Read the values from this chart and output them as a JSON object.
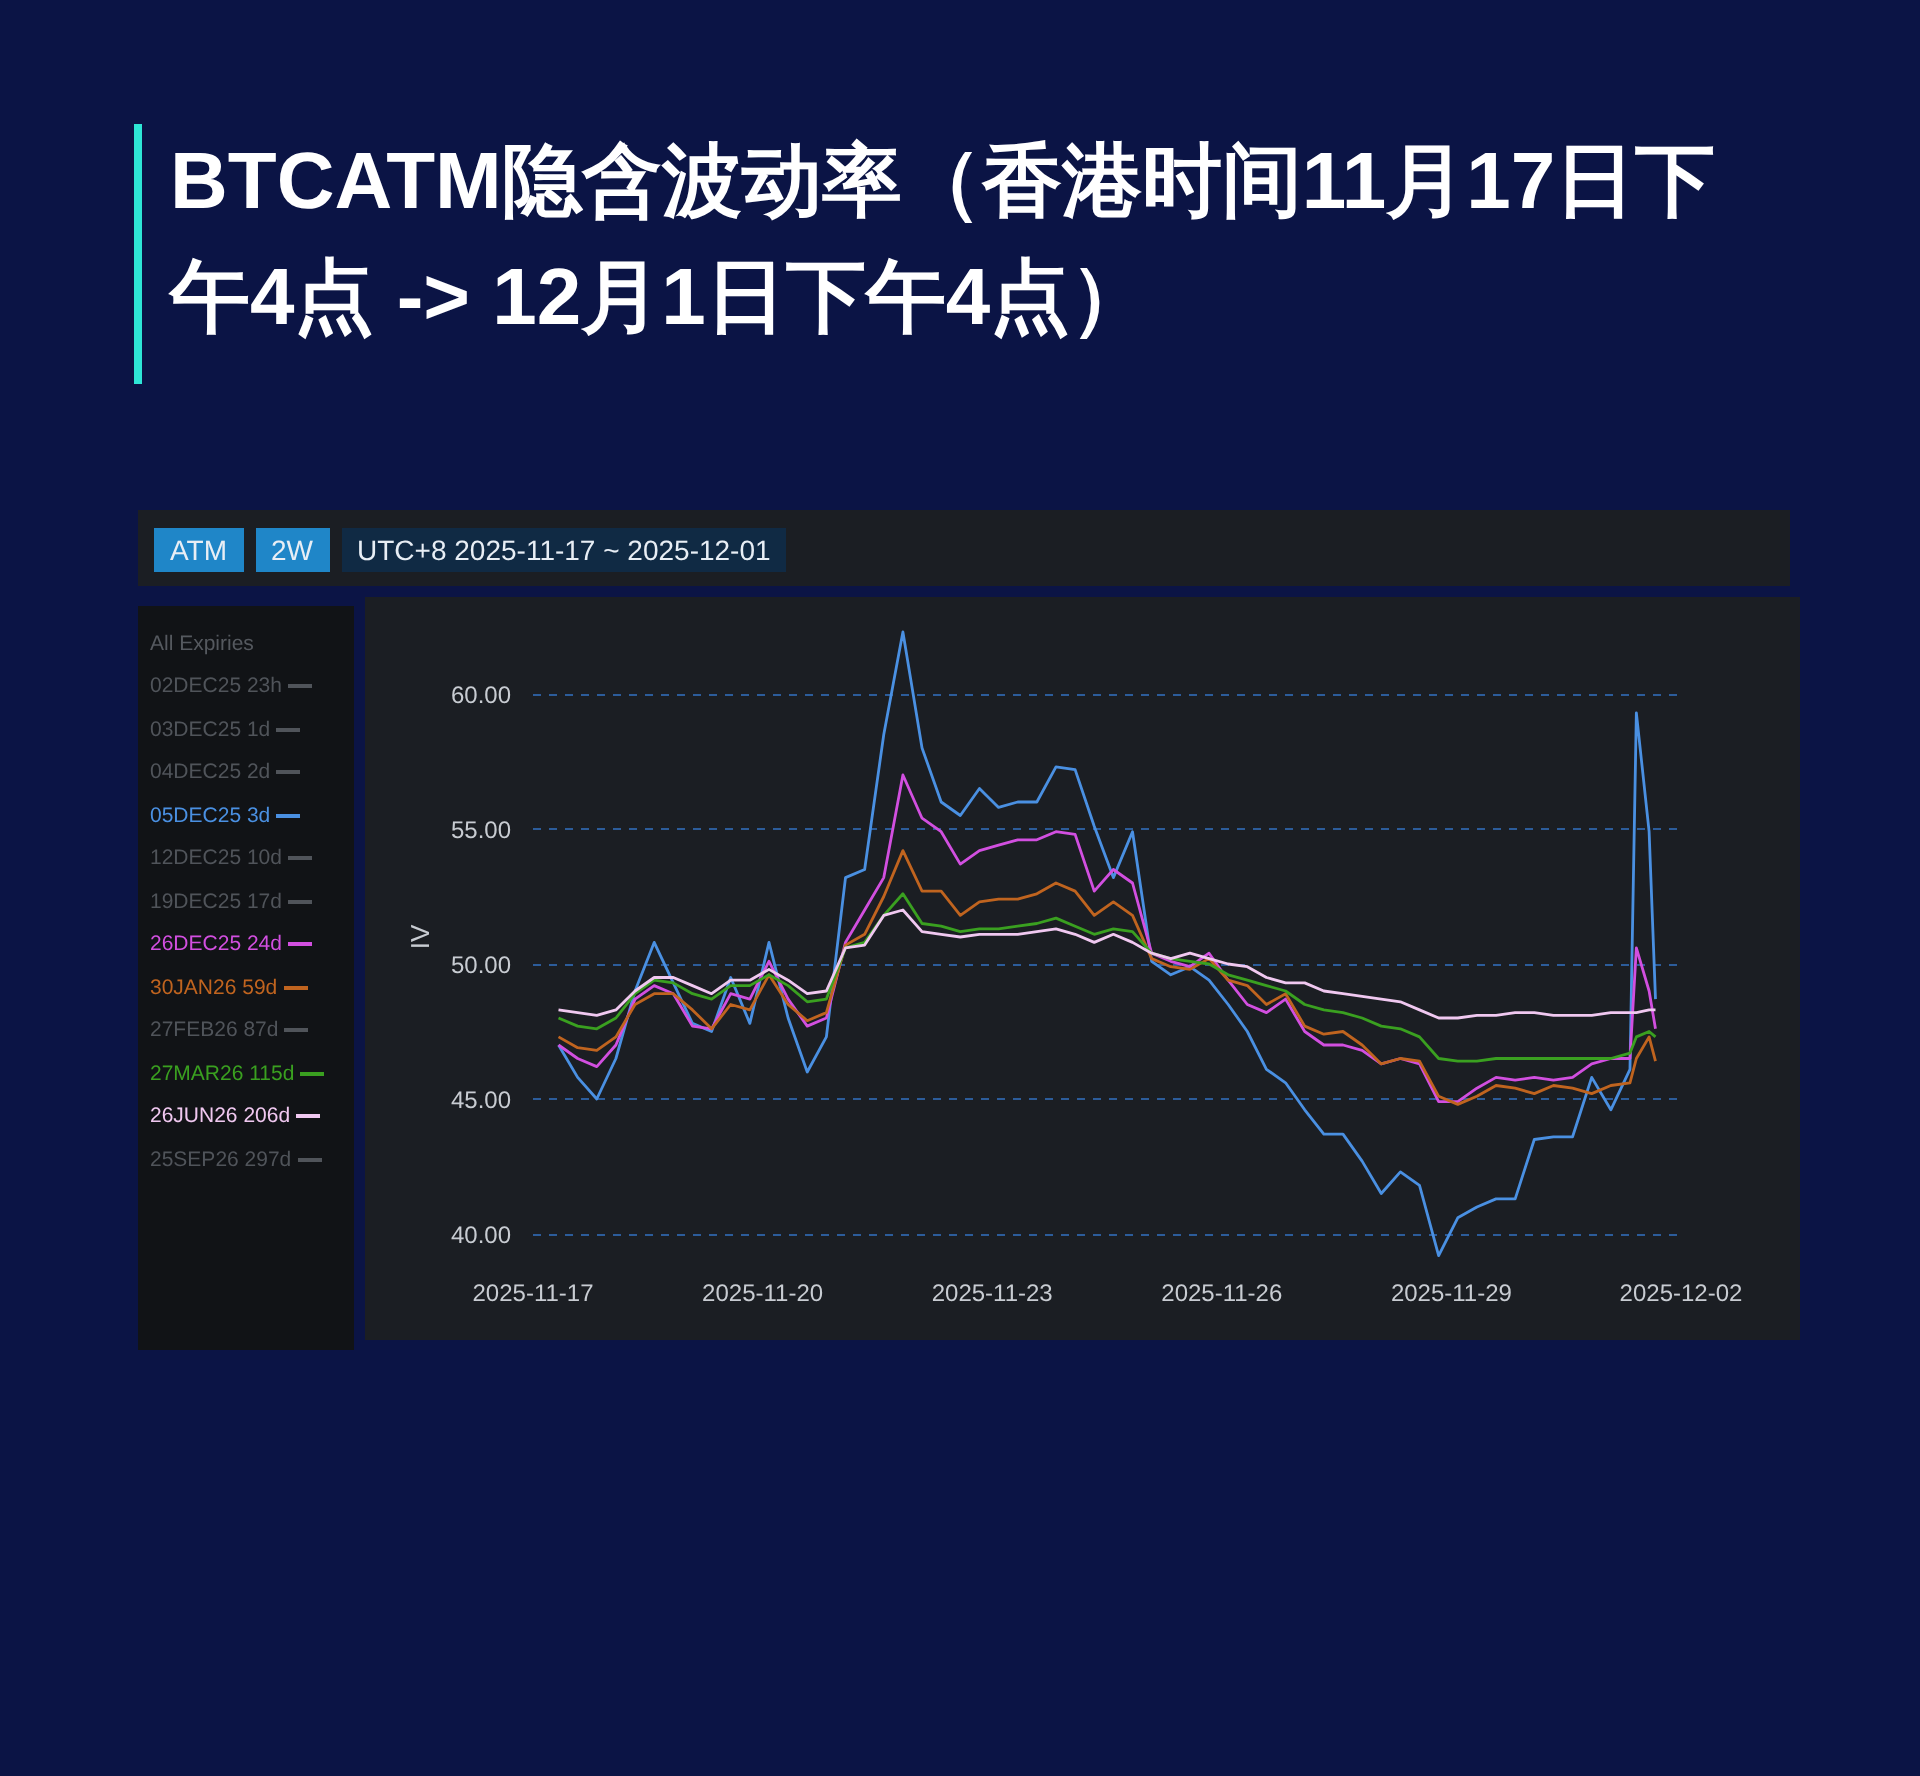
{
  "chart_data": {
    "type": "line",
    "title": "BTCATM隐含波动率（香港时间11月17日下午4点 -> 12月1日下午4点）",
    "ylabel": "IV",
    "annotations": [
      "ATM",
      "2W",
      "UTC+8 2025-11-17 ~ 2025-12-01",
      "All Expiries"
    ],
    "x": [
      "2025-11-17T08:00",
      "2025-11-17T14:00",
      "2025-11-17T20:00",
      "2025-11-18T02:00",
      "2025-11-18T08:00",
      "2025-11-18T14:00",
      "2025-11-18T20:00",
      "2025-11-19T02:00",
      "2025-11-19T08:00",
      "2025-11-19T14:00",
      "2025-11-19T20:00",
      "2025-11-20T02:00",
      "2025-11-20T08:00",
      "2025-11-20T14:00",
      "2025-11-20T20:00",
      "2025-11-21T02:00",
      "2025-11-21T08:00",
      "2025-11-21T14:00",
      "2025-11-21T20:00",
      "2025-11-22T02:00",
      "2025-11-22T08:00",
      "2025-11-22T14:00",
      "2025-11-22T20:00",
      "2025-11-23T02:00",
      "2025-11-23T08:00",
      "2025-11-23T14:00",
      "2025-11-23T20:00",
      "2025-11-24T02:00",
      "2025-11-24T08:00",
      "2025-11-24T14:00",
      "2025-11-24T20:00",
      "2025-11-25T02:00",
      "2025-11-25T08:00",
      "2025-11-25T14:00",
      "2025-11-25T20:00",
      "2025-11-26T02:00",
      "2025-11-26T08:00",
      "2025-11-26T14:00",
      "2025-11-26T20:00",
      "2025-11-27T02:00",
      "2025-11-27T08:00",
      "2025-11-27T14:00",
      "2025-11-27T20:00",
      "2025-11-28T02:00",
      "2025-11-28T08:00",
      "2025-11-28T14:00",
      "2025-11-28T20:00",
      "2025-11-29T02:00",
      "2025-11-29T08:00",
      "2025-11-29T14:00",
      "2025-11-29T20:00",
      "2025-11-30T02:00",
      "2025-11-30T08:00",
      "2025-11-30T14:00",
      "2025-11-30T20:00",
      "2025-12-01T02:00",
      "2025-12-01T08:00",
      "2025-12-01T10:00",
      "2025-12-01T14:00",
      "2025-12-01T16:00"
    ],
    "series": [
      {
        "name": "02DEC25 23h",
        "color": "#50545a",
        "values": [
          null,
          null,
          null,
          null,
          null,
          null,
          null,
          null,
          null,
          null,
          null,
          null,
          null,
          null,
          null,
          null,
          null,
          null,
          null,
          null,
          null,
          null,
          null,
          null,
          null,
          null,
          null,
          null,
          null,
          null,
          null,
          null,
          null,
          null,
          null,
          null,
          null,
          null,
          null,
          null,
          null,
          null,
          null,
          null,
          null,
          null,
          null,
          null,
          null,
          null,
          null,
          null,
          null,
          null,
          null,
          null,
          null,
          null,
          null,
          null
        ]
      },
      {
        "name": "03DEC25 1d",
        "color": "#50545a",
        "values": [
          null,
          null,
          null,
          null,
          null,
          null,
          null,
          null,
          null,
          null,
          null,
          null,
          null,
          null,
          null,
          null,
          null,
          null,
          null,
          null,
          null,
          null,
          null,
          null,
          null,
          null,
          null,
          null,
          null,
          null,
          null,
          null,
          null,
          null,
          null,
          null,
          null,
          null,
          null,
          null,
          null,
          null,
          null,
          null,
          null,
          null,
          null,
          null,
          null,
          null,
          null,
          null,
          null,
          null,
          null,
          null,
          null,
          null,
          null,
          null
        ]
      },
      {
        "name": "04DEC25 2d",
        "color": "#50545a",
        "values": [
          null,
          null,
          null,
          null,
          null,
          null,
          null,
          null,
          null,
          null,
          null,
          null,
          null,
          null,
          null,
          null,
          null,
          null,
          null,
          null,
          null,
          null,
          null,
          null,
          null,
          null,
          null,
          null,
          null,
          null,
          null,
          null,
          null,
          null,
          null,
          null,
          null,
          null,
          null,
          null,
          null,
          null,
          null,
          null,
          null,
          null,
          null,
          null,
          null,
          null,
          null,
          null,
          null,
          null,
          null,
          null,
          null,
          null,
          null,
          null
        ]
      },
      {
        "name": "05DEC25 3d",
        "color": "#4a90e2",
        "values": [
          47.0,
          45.8,
          45.0,
          46.5,
          49.0,
          50.8,
          49.3,
          47.8,
          47.5,
          49.5,
          47.8,
          50.8,
          48.0,
          46.0,
          47.3,
          53.2,
          53.5,
          58.5,
          62.3,
          58.0,
          56.0,
          55.5,
          56.5,
          55.8,
          56.0,
          56.0,
          57.3,
          57.2,
          55.1,
          53.2,
          54.9,
          50.1,
          49.6,
          49.9,
          49.4,
          48.5,
          47.5,
          46.1,
          45.6,
          44.6,
          43.7,
          43.7,
          42.7,
          41.5,
          42.3,
          41.8,
          39.2,
          40.6,
          41.0,
          41.3,
          41.3,
          43.5,
          43.6,
          43.6,
          45.8,
          44.6,
          46.1,
          59.3,
          54.9,
          48.7
        ]
      },
      {
        "name": "12DEC25 10d",
        "color": "#50545a",
        "values": [
          null,
          null,
          null,
          null,
          null,
          null,
          null,
          null,
          null,
          null,
          null,
          null,
          null,
          null,
          null,
          null,
          null,
          null,
          null,
          null,
          null,
          null,
          null,
          null,
          null,
          null,
          null,
          null,
          null,
          null,
          null,
          null,
          null,
          null,
          null,
          null,
          null,
          null,
          null,
          null,
          null,
          null,
          null,
          null,
          null,
          null,
          null,
          null,
          null,
          null,
          null,
          null,
          null,
          null,
          null,
          null,
          null,
          null,
          null,
          null
        ]
      },
      {
        "name": "19DEC25 17d",
        "color": "#50545a",
        "values": [
          null,
          null,
          null,
          null,
          null,
          null,
          null,
          null,
          null,
          null,
          null,
          null,
          null,
          null,
          null,
          null,
          null,
          null,
          null,
          null,
          null,
          null,
          null,
          null,
          null,
          null,
          null,
          null,
          null,
          null,
          null,
          null,
          null,
          null,
          null,
          null,
          null,
          null,
          null,
          null,
          null,
          null,
          null,
          null,
          null,
          null,
          null,
          null,
          null,
          null,
          null,
          null,
          null,
          null,
          null,
          null,
          null,
          null,
          null,
          null
        ]
      },
      {
        "name": "26DEC25 24d",
        "color": "#d24fe0",
        "values": [
          47.0,
          46.5,
          46.2,
          47.0,
          48.7,
          49.2,
          48.9,
          47.7,
          47.6,
          48.9,
          48.7,
          50.1,
          48.7,
          47.7,
          48.0,
          50.8,
          52.0,
          53.2,
          57.0,
          55.4,
          54.9,
          53.7,
          54.2,
          54.4,
          54.6,
          54.6,
          54.9,
          54.8,
          52.7,
          53.5,
          53.0,
          50.4,
          50.1,
          49.9,
          50.4,
          49.4,
          48.5,
          48.2,
          48.7,
          47.5,
          47.0,
          47.0,
          46.8,
          46.3,
          46.5,
          46.3,
          44.9,
          44.9,
          45.4,
          45.8,
          45.7,
          45.8,
          45.7,
          45.8,
          46.3,
          46.5,
          46.5,
          50.6,
          49.0,
          47.6
        ]
      },
      {
        "name": "30JAN26 59d",
        "color": "#c0641f",
        "values": [
          47.3,
          46.9,
          46.8,
          47.3,
          48.5,
          48.9,
          48.9,
          48.3,
          47.6,
          48.5,
          48.3,
          49.6,
          48.5,
          47.9,
          48.2,
          50.7,
          51.1,
          52.5,
          54.2,
          52.7,
          52.7,
          51.8,
          52.3,
          52.4,
          52.4,
          52.6,
          53.0,
          52.7,
          51.8,
          52.3,
          51.8,
          50.2,
          49.9,
          49.8,
          50.2,
          49.4,
          49.2,
          48.5,
          48.9,
          47.7,
          47.4,
          47.5,
          47.0,
          46.3,
          46.5,
          46.4,
          45.1,
          44.8,
          45.1,
          45.5,
          45.4,
          45.2,
          45.5,
          45.4,
          45.2,
          45.5,
          45.6,
          46.5,
          47.3,
          46.4
        ]
      },
      {
        "name": "27FEB26 87d",
        "color": "#50545a",
        "values": [
          null,
          null,
          null,
          null,
          null,
          null,
          null,
          null,
          null,
          null,
          null,
          null,
          null,
          null,
          null,
          null,
          null,
          null,
          null,
          null,
          null,
          null,
          null,
          null,
          null,
          null,
          null,
          null,
          null,
          null,
          null,
          null,
          null,
          null,
          null,
          null,
          null,
          null,
          null,
          null,
          null,
          null,
          null,
          null,
          null,
          null,
          null,
          null,
          null,
          null,
          null,
          null,
          null,
          null,
          null,
          null,
          null,
          null,
          null,
          null
        ]
      },
      {
        "name": "27MAR26 115d",
        "color": "#3aa020",
        "values": [
          48.0,
          47.7,
          47.6,
          48.0,
          48.9,
          49.4,
          49.3,
          48.9,
          48.7,
          49.2,
          49.2,
          49.6,
          49.2,
          48.6,
          48.7,
          50.6,
          50.8,
          51.8,
          52.6,
          51.5,
          51.4,
          51.2,
          51.3,
          51.3,
          51.4,
          51.5,
          51.7,
          51.4,
          51.1,
          51.3,
          51.2,
          50.4,
          50.2,
          50.1,
          50.0,
          49.6,
          49.4,
          49.2,
          49.0,
          48.5,
          48.3,
          48.2,
          48.0,
          47.7,
          47.6,
          47.3,
          46.5,
          46.4,
          46.4,
          46.5,
          46.5,
          46.5,
          46.5,
          46.5,
          46.5,
          46.5,
          46.7,
          47.3,
          47.5,
          47.3
        ]
      },
      {
        "name": "26JUN26 206d",
        "color": "#f0c8f0",
        "values": [
          48.3,
          48.2,
          48.1,
          48.3,
          49.0,
          49.5,
          49.5,
          49.2,
          48.9,
          49.4,
          49.4,
          49.8,
          49.4,
          48.9,
          49.0,
          50.6,
          50.7,
          51.8,
          52.0,
          51.2,
          51.1,
          51.0,
          51.1,
          51.1,
          51.1,
          51.2,
          51.3,
          51.1,
          50.8,
          51.1,
          50.8,
          50.4,
          50.2,
          50.4,
          50.2,
          50.0,
          49.9,
          49.5,
          49.3,
          49.3,
          49.0,
          48.9,
          48.8,
          48.7,
          48.6,
          48.3,
          48.0,
          48.0,
          48.1,
          48.1,
          48.2,
          48.2,
          48.1,
          48.1,
          48.1,
          48.2,
          48.2,
          48.2,
          48.3,
          48.3
        ]
      },
      {
        "name": "25SEP26 297d",
        "color": "#50545a",
        "values": [
          null,
          null,
          null,
          null,
          null,
          null,
          null,
          null,
          null,
          null,
          null,
          null,
          null,
          null,
          null,
          null,
          null,
          null,
          null,
          null,
          null,
          null,
          null,
          null,
          null,
          null,
          null,
          null,
          null,
          null,
          null,
          null,
          null,
          null,
          null,
          null,
          null,
          null,
          null,
          null,
          null,
          null,
          null,
          null,
          null,
          null,
          null,
          null,
          null,
          null,
          null,
          null,
          null,
          null,
          null,
          null,
          null,
          null,
          null,
          null
        ]
      }
    ],
    "xlim": [
      "2025-11-17",
      "2025-12-02"
    ],
    "xticks": [
      "2025-11-17",
      "2025-11-20",
      "2025-11-23",
      "2025-11-26",
      "2025-11-29",
      "2025-12-02"
    ],
    "ylim": [
      39,
      63
    ],
    "yticks": [
      {
        "value": 40,
        "label": "40.00"
      },
      {
        "value": 45,
        "label": "45.00"
      },
      {
        "value": 50,
        "label": "50.00"
      },
      {
        "value": 55,
        "label": "55.00"
      },
      {
        "value": 60,
        "label": "60.00"
      }
    ],
    "grid": "y",
    "legend": "left"
  }
}
